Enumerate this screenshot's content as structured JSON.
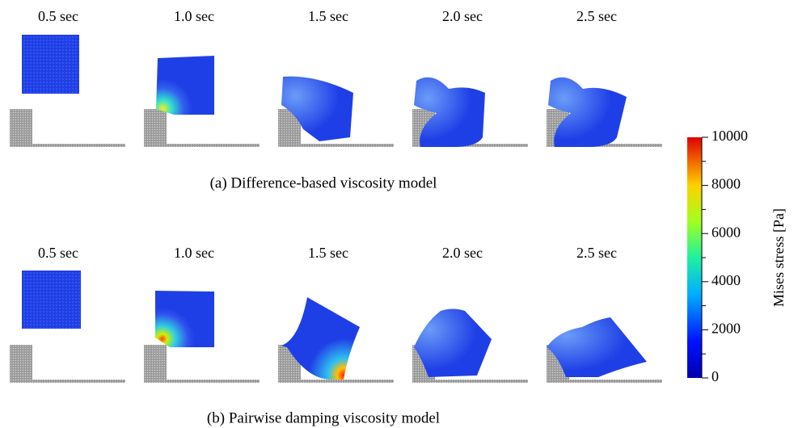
{
  "rows": [
    {
      "times": [
        "0.5 sec",
        "1.0 sec",
        "1.5 sec",
        "2.0 sec",
        "2.5 sec"
      ],
      "caption": "(a) Difference-based viscosity model"
    },
    {
      "times": [
        "0.5 sec",
        "1.0 sec",
        "1.5 sec",
        "2.0 sec",
        "2.5 sec"
      ],
      "caption": "(b) Pairwise damping viscosity model"
    }
  ],
  "colorbar": {
    "label": "Mises stress [Pa]",
    "lim": [
      0,
      10000
    ],
    "ticks": [
      0,
      2000,
      4000,
      6000,
      8000,
      10000
    ]
  }
}
